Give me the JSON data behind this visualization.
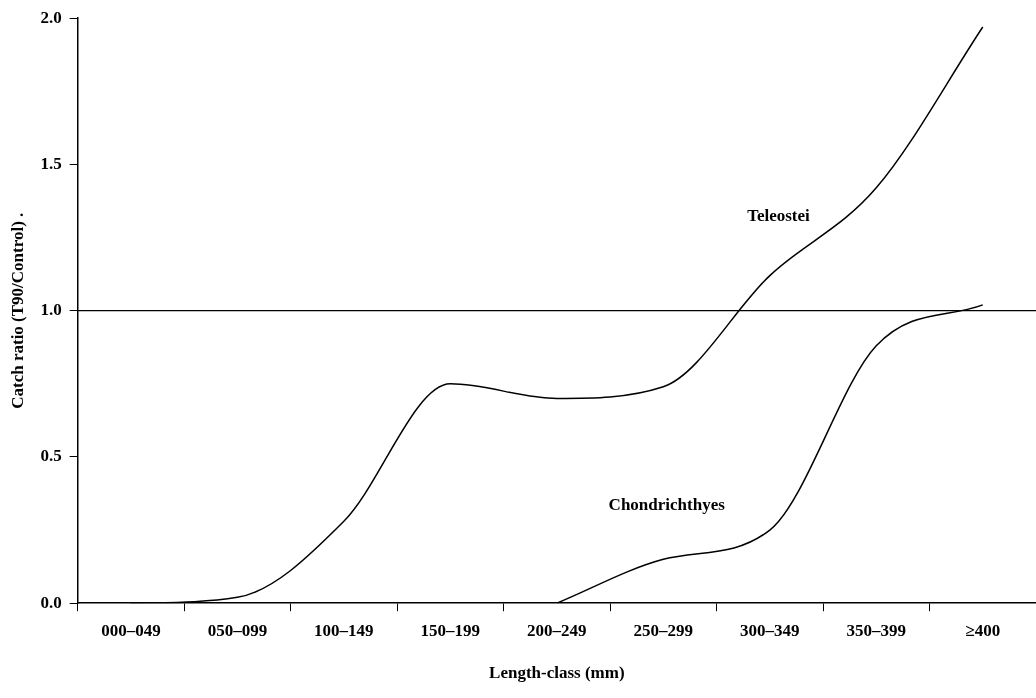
{
  "chart_data": {
    "type": "line",
    "xlabel": "Length-class (mm)",
    "ylabel": "Catch ratio (T90/Control) .",
    "categories": [
      "000–049",
      "050–099",
      "100–149",
      "150–199",
      "200–249",
      "250–299",
      "300–349",
      "350–399",
      "≥400"
    ],
    "series": [
      {
        "name": "Teleostei",
        "color": "#000000",
        "values": [
          0,
          0.02,
          0.28,
          0.75,
          0.7,
          0.74,
          1.12,
          1.42,
          1.97
        ]
      },
      {
        "name": "Chondrichthyes",
        "color": "#000000",
        "values": [
          null,
          null,
          null,
          null,
          0,
          0.15,
          0.25,
          0.88,
          1.02
        ]
      }
    ],
    "ylim": [
      0,
      2
    ],
    "yticks": [
      {
        "value": 0,
        "label": "0.0"
      },
      {
        "value": 0.5,
        "label": "0.5"
      },
      {
        "value": 1,
        "label": "1.0"
      },
      {
        "value": 1.5,
        "label": "1.5"
      },
      {
        "value": 2,
        "label": "2.0"
      }
    ],
    "ref_lines": [
      {
        "axis": "y",
        "value": 1,
        "color": "#000000"
      }
    ],
    "grid": false,
    "legend": false,
    "marker": "none",
    "line_style": "solid"
  }
}
